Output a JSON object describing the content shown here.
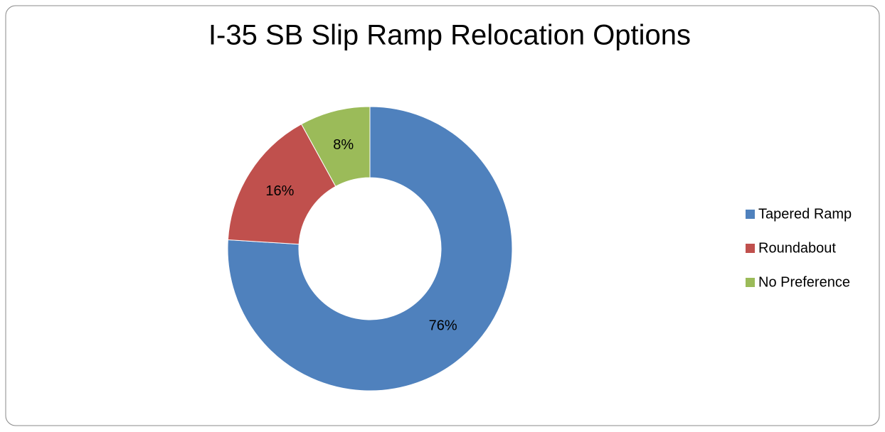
{
  "chart_data": {
    "type": "donut",
    "title": "I-35 SB Slip Ramp Relocation Options",
    "categories": [
      "Tapered Ramp",
      "Roundabout",
      "No Preference"
    ],
    "values": [
      76,
      16,
      8
    ],
    "value_labels": [
      "76%",
      "16%",
      "8%"
    ],
    "colors": [
      "#4f81bd",
      "#c0504d",
      "#9bbb59"
    ],
    "legend": "right"
  }
}
